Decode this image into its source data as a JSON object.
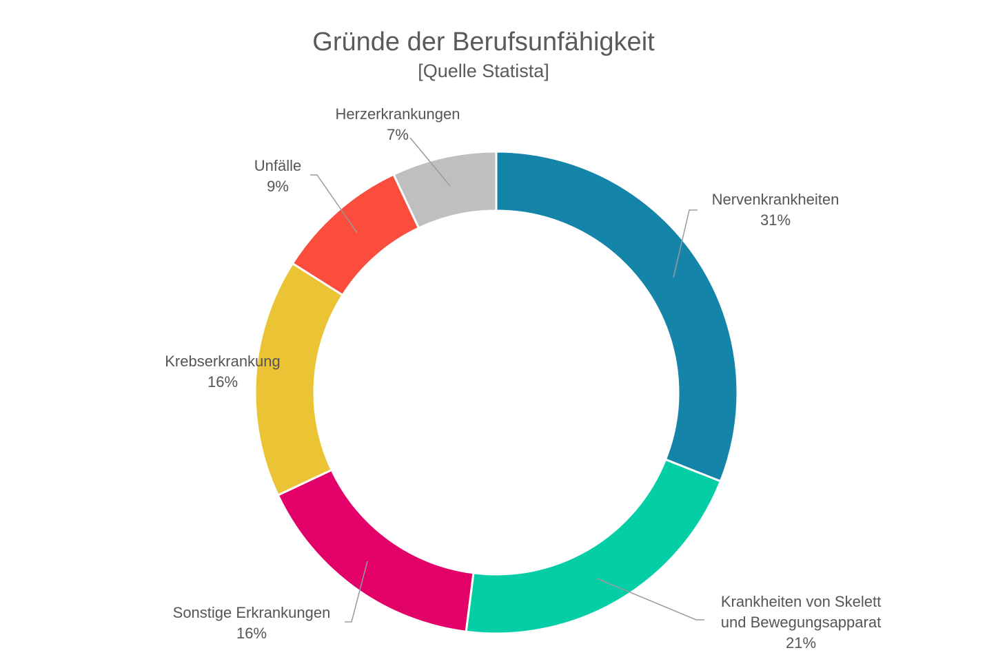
{
  "chart_data": {
    "type": "pie",
    "donut": true,
    "title": "Gründe der Berufsunfähigkeit",
    "subtitle": "[Quelle Statista]",
    "slices": [
      {
        "label": "Nervenkrankheiten",
        "value_label": "31%",
        "value": 31,
        "color": "#1584a9"
      },
      {
        "label": "Krankheiten von Skelett und Bewegungsapparat",
        "value_label": "21%",
        "value": 21,
        "color": "#05cea6"
      },
      {
        "label": "Sonstige Erkrankungen",
        "value_label": "16%",
        "value": 16,
        "color": "#e20069"
      },
      {
        "label": "Krebserkrankung",
        "value_label": "16%",
        "value": 16,
        "color": "#eac435"
      },
      {
        "label": "Unfälle",
        "value_label": "9%",
        "value": 9,
        "color": "#fb4d3d"
      },
      {
        "label": "Herzerkrankungen",
        "value_label": "7%",
        "value": 7,
        "color": "#bfbfbf"
      }
    ],
    "label_lines": [
      [
        "Nervenkrankheiten"
      ],
      [
        "Krankheiten von Skelett",
        "und Bewegungsapparat"
      ],
      [
        "Sonstige Erkrankungen"
      ],
      [
        "Krebserkrankung"
      ],
      [
        "Unfälle"
      ],
      [
        "Herzerkrankungen"
      ]
    ]
  }
}
